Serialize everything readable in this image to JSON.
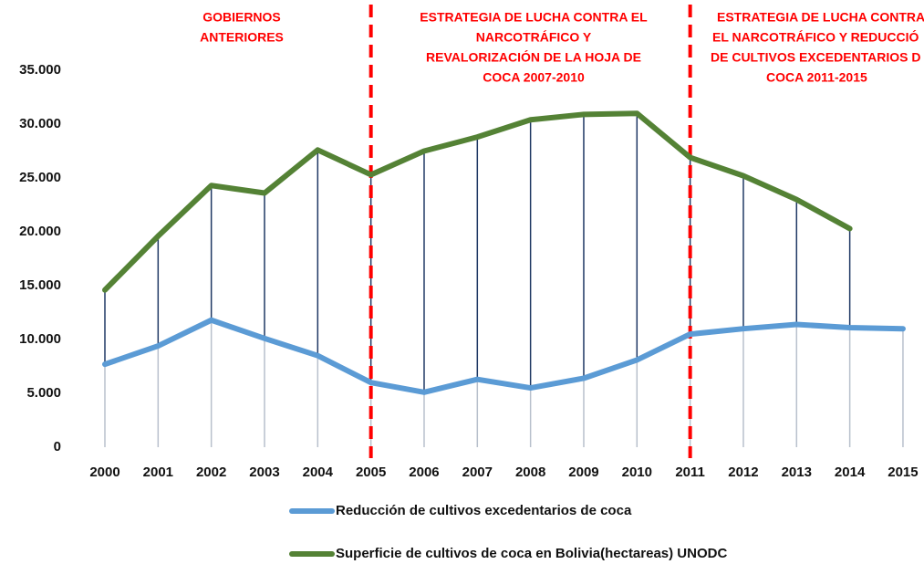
{
  "chart_data": {
    "type": "line",
    "categories": [
      "2000",
      "2001",
      "2002",
      "2003",
      "2004",
      "2005",
      "2006",
      "2007",
      "2008",
      "2009",
      "2010",
      "2011",
      "2012",
      "2013",
      "2014",
      "2015"
    ],
    "series": [
      {
        "name": "Reducción de cultivos excedentarios de coca",
        "color": "#5b9bd5",
        "values": [
          7700,
          9400,
          11800,
          10100,
          8500,
          6000,
          5100,
          6300,
          5500,
          6400,
          8100,
          10500,
          11000,
          11400,
          11100,
          11000
        ]
      },
      {
        "name": "Superficie de cultivos de coca en Bolivia(hectareas) UNODC",
        "color": "#548235",
        "values": [
          14600,
          19600,
          24300,
          23600,
          27600,
          25300,
          27500,
          28800,
          30400,
          30900,
          31000,
          26900,
          25200,
          23000,
          20300,
          null
        ]
      }
    ],
    "ylim": [
      0,
      35000
    ],
    "yticks": [
      0,
      {
        "value": 5000,
        "label": "5.000"
      },
      {
        "value": 10000,
        "label": "10.000"
      },
      {
        "value": 15000,
        "label": "15.000"
      },
      {
        "value": 20000,
        "label": "20.000"
      },
      {
        "value": 25000,
        "label": "25.000"
      },
      {
        "value": 30000,
        "label": "30.000"
      },
      {
        "value": 35000,
        "label": "35.000"
      }
    ],
    "dividers": [
      "2005",
      "2011"
    ],
    "annotations": [
      {
        "lines": [
          "GOBIERNOS",
          "ANTERIORES"
        ]
      },
      {
        "lines": [
          "ESTRATEGIA DE LUCHA CONTRA EL",
          "NARCOTRÁFICO Y",
          "REVALORIZACIÓN DE LA HOJA DE",
          "COCA 2007-2010"
        ]
      },
      {
        "lines": [
          "ESTRATEGIA DE LUCHA CONTRA",
          "EL NARCOTRÁFICO Y REDUCCIÓ",
          "DE CULTIVOS EXCEDENTARIOS D",
          "COCA 2011-2015"
        ]
      }
    ]
  }
}
